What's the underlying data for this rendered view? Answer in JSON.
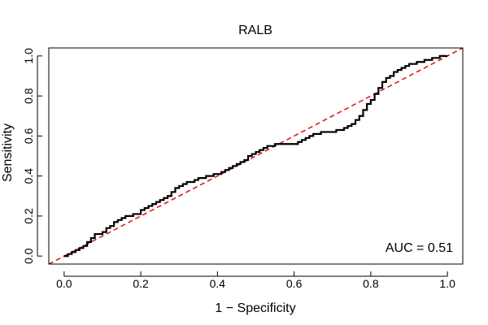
{
  "chart_data": {
    "type": "line",
    "title": "RALB",
    "xlabel": "1 − Specificity",
    "ylabel": "Sensitivity",
    "xlim": [
      -0.04,
      1.04
    ],
    "ylim": [
      -0.04,
      1.04
    ],
    "x_ticks": [
      0.0,
      0.2,
      0.4,
      0.6,
      0.8,
      1.0
    ],
    "y_ticks": [
      0.0,
      0.2,
      0.4,
      0.6,
      0.8,
      1.0
    ],
    "x_tick_labels": [
      "0.0",
      "0.2",
      "0.4",
      "0.6",
      "0.8",
      "1.0"
    ],
    "y_tick_labels": [
      "0.0",
      "0.2",
      "0.4",
      "0.6",
      "0.8",
      "1.0"
    ],
    "annotation": "AUC = 0.51",
    "grid": false,
    "series": [
      {
        "name": "ROC curve",
        "color": "#000000",
        "x": [
          0.0,
          0.01,
          0.02,
          0.03,
          0.04,
          0.05,
          0.06,
          0.07,
          0.08,
          0.09,
          0.1,
          0.11,
          0.12,
          0.13,
          0.14,
          0.15,
          0.16,
          0.18,
          0.2,
          0.21,
          0.22,
          0.23,
          0.24,
          0.25,
          0.26,
          0.27,
          0.28,
          0.29,
          0.3,
          0.31,
          0.32,
          0.33,
          0.34,
          0.35,
          0.36,
          0.37,
          0.38,
          0.39,
          0.4,
          0.41,
          0.42,
          0.43,
          0.44,
          0.45,
          0.46,
          0.47,
          0.48,
          0.49,
          0.5,
          0.51,
          0.52,
          0.53,
          0.54,
          0.55,
          0.56,
          0.57,
          0.58,
          0.59,
          0.6,
          0.61,
          0.62,
          0.63,
          0.64,
          0.65,
          0.66,
          0.67,
          0.68,
          0.69,
          0.7,
          0.71,
          0.72,
          0.73,
          0.74,
          0.75,
          0.76,
          0.77,
          0.78,
          0.79,
          0.8,
          0.81,
          0.82,
          0.83,
          0.84,
          0.85,
          0.86,
          0.87,
          0.88,
          0.89,
          0.9,
          0.91,
          0.92,
          0.93,
          0.94,
          0.95,
          0.96,
          0.97,
          0.98,
          1.0
        ],
        "y": [
          0.0,
          0.01,
          0.02,
          0.03,
          0.04,
          0.05,
          0.07,
          0.09,
          0.11,
          0.11,
          0.12,
          0.14,
          0.15,
          0.17,
          0.18,
          0.19,
          0.2,
          0.21,
          0.23,
          0.24,
          0.25,
          0.26,
          0.27,
          0.28,
          0.29,
          0.3,
          0.32,
          0.34,
          0.35,
          0.36,
          0.37,
          0.37,
          0.38,
          0.39,
          0.39,
          0.4,
          0.4,
          0.41,
          0.41,
          0.42,
          0.43,
          0.44,
          0.45,
          0.46,
          0.47,
          0.48,
          0.5,
          0.51,
          0.52,
          0.53,
          0.54,
          0.55,
          0.55,
          0.56,
          0.56,
          0.56,
          0.56,
          0.56,
          0.56,
          0.57,
          0.58,
          0.59,
          0.6,
          0.61,
          0.61,
          0.62,
          0.62,
          0.62,
          0.62,
          0.63,
          0.63,
          0.64,
          0.65,
          0.66,
          0.68,
          0.7,
          0.73,
          0.76,
          0.78,
          0.81,
          0.84,
          0.87,
          0.89,
          0.9,
          0.92,
          0.93,
          0.94,
          0.95,
          0.96,
          0.96,
          0.97,
          0.97,
          0.98,
          0.98,
          0.99,
          0.99,
          1.0,
          1.0
        ]
      },
      {
        "name": "Reference diagonal",
        "color": "#e31a1c",
        "x": [
          -0.04,
          1.04
        ],
        "y": [
          -0.04,
          1.04
        ]
      }
    ]
  }
}
